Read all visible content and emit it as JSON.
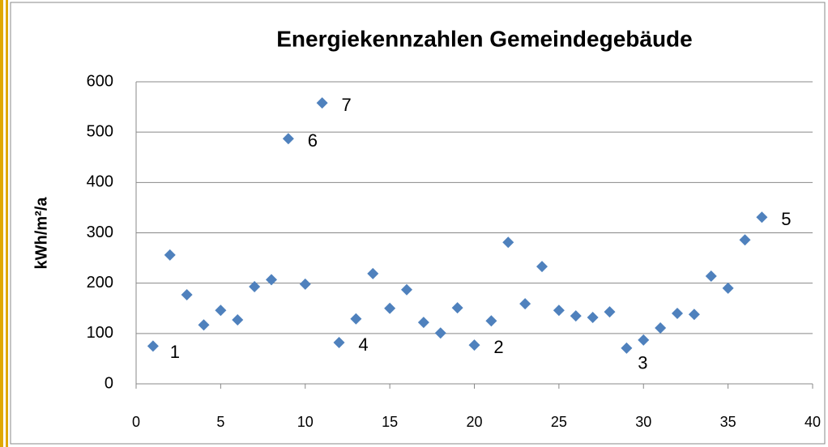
{
  "chart_data": {
    "type": "scatter",
    "title": "Energiekennzahlen Gemeindegebäude",
    "y_label": "kWh/m²/a",
    "x": [
      1,
      2,
      3,
      4,
      5,
      6,
      7,
      8,
      9,
      10,
      11,
      12,
      13,
      14,
      15,
      16,
      17,
      18,
      19,
      20,
      21,
      22,
      23,
      24,
      25,
      26,
      27,
      28,
      29,
      30,
      31,
      32,
      33,
      34,
      35,
      36,
      37
    ],
    "values": [
      75,
      256,
      177,
      117,
      146,
      127,
      193,
      207,
      487,
      198,
      558,
      82,
      129,
      219,
      150,
      187,
      122,
      101,
      151,
      77,
      125,
      281,
      159,
      233,
      146,
      135,
      132,
      143,
      71,
      87,
      111,
      140,
      138,
      214,
      190,
      286,
      331
    ],
    "point_labels": [
      "1",
      null,
      null,
      null,
      null,
      null,
      null,
      null,
      "6",
      null,
      "7",
      "4",
      null,
      null,
      null,
      null,
      null,
      null,
      null,
      "2",
      null,
      null,
      null,
      null,
      null,
      null,
      null,
      null,
      "3",
      null,
      null,
      null,
      null,
      null,
      null,
      null,
      "5"
    ],
    "color": "#4f81bd",
    "xlim": [
      0,
      40
    ],
    "xticks": [
      0,
      5,
      10,
      15,
      20,
      25,
      30,
      35,
      40
    ],
    "ylim": [
      0,
      600
    ],
    "yticks": [
      0,
      100,
      200,
      300,
      400,
      500,
      600
    ],
    "grid": true
  }
}
